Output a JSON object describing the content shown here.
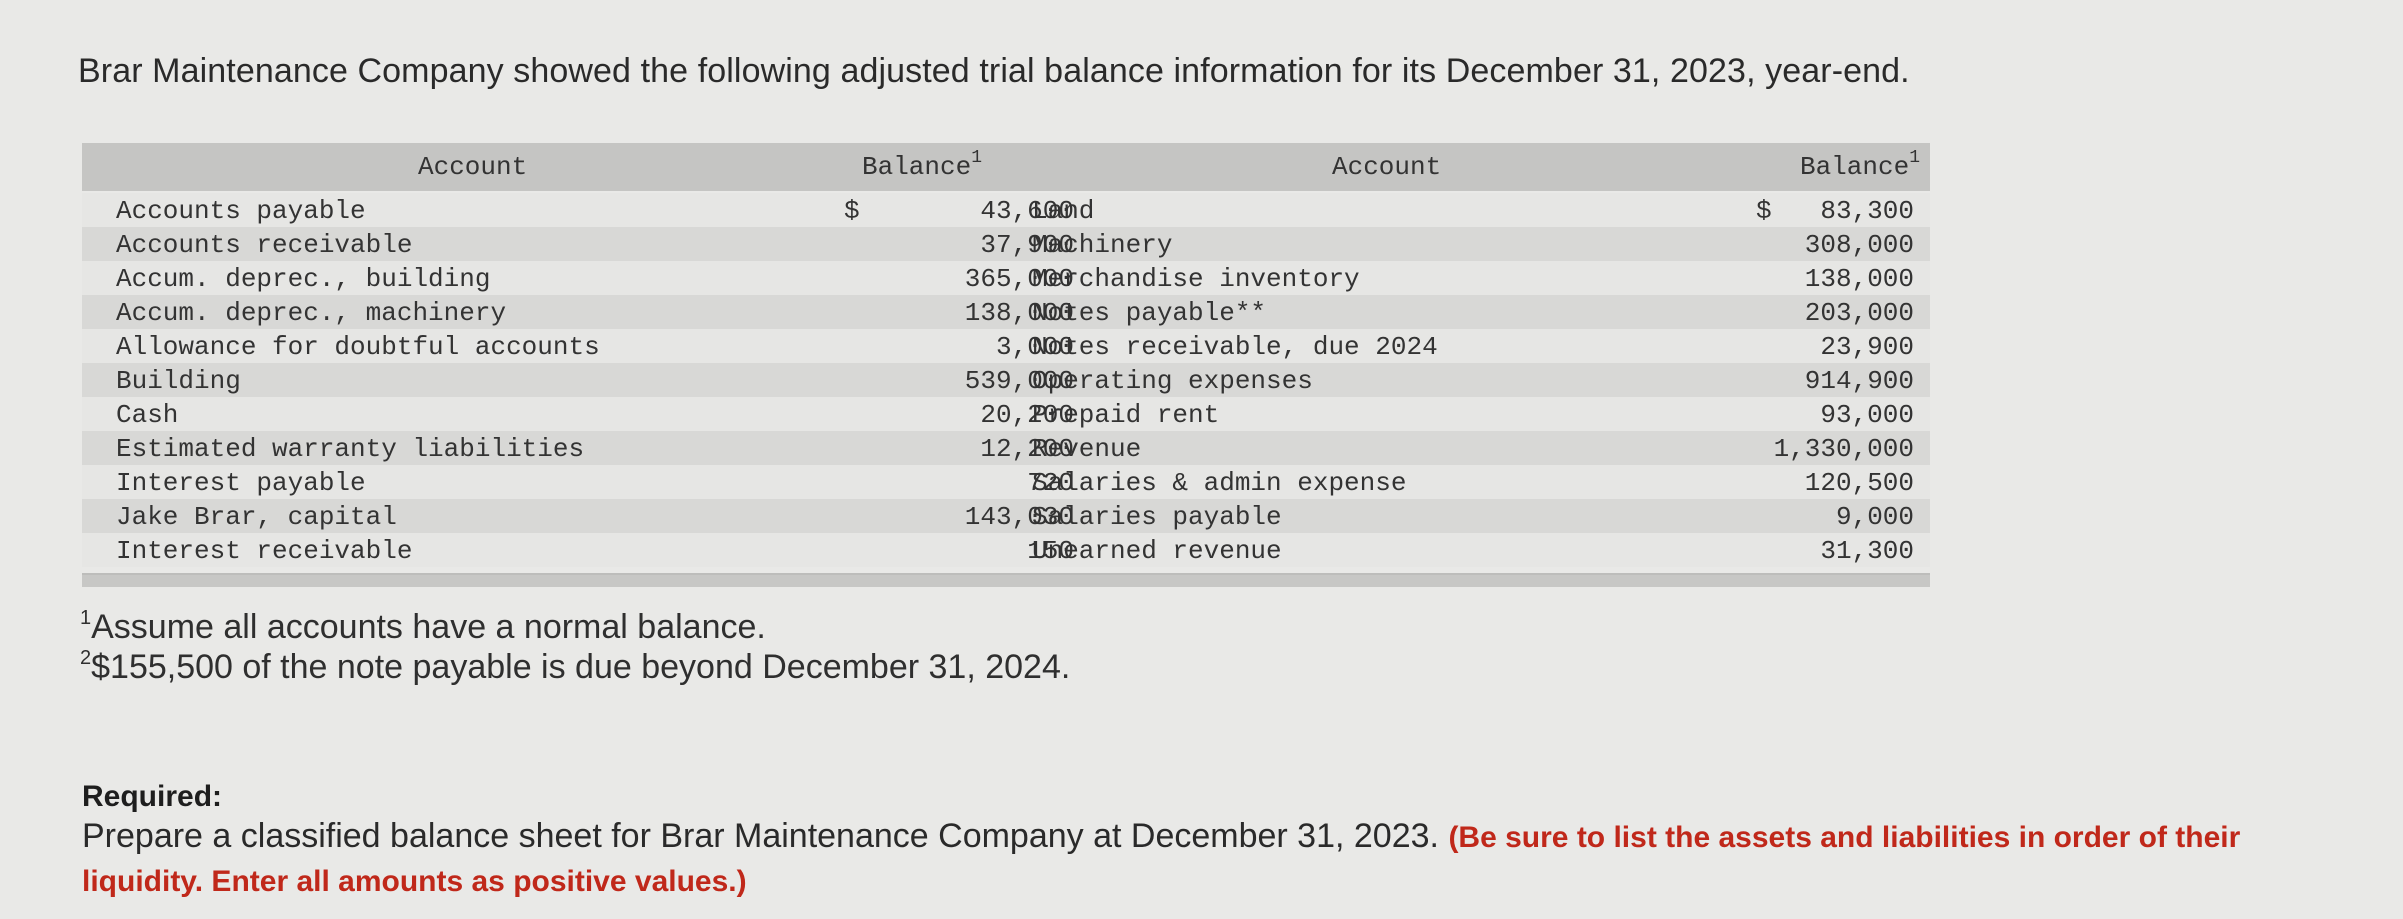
{
  "intro": "Brar Maintenance Company showed the following adjusted trial balance information for its December 31, 2023, year-end.",
  "table": {
    "header_account": "Account",
    "header_balance": "Balance",
    "header_sup": "1",
    "currency": "$",
    "left": [
      {
        "account": "Accounts payable",
        "balance": "43,600"
      },
      {
        "account": "Accounts receivable",
        "balance": "37,900"
      },
      {
        "account": "Accum. deprec., building",
        "balance": "365,000"
      },
      {
        "account": "Accum. deprec., machinery",
        "balance": "138,000"
      },
      {
        "account": "Allowance for doubtful accounts",
        "balance": "3,000"
      },
      {
        "account": "Building",
        "balance": "539,000"
      },
      {
        "account": "Cash",
        "balance": "20,200"
      },
      {
        "account": "Estimated warranty liabilities",
        "balance": "12,200"
      },
      {
        "account": "Interest payable",
        "balance": "720"
      },
      {
        "account": "Jake Brar, capital",
        "balance": "143,030"
      },
      {
        "account": "Interest receivable",
        "balance": "150"
      }
    ],
    "right": [
      {
        "account": "Land",
        "balance": "83,300"
      },
      {
        "account": "Machinery",
        "balance": "308,000"
      },
      {
        "account": "Merchandise inventory",
        "balance": "138,000"
      },
      {
        "account": "Notes payable**",
        "balance": "203,000"
      },
      {
        "account": "Notes receivable, due 2024",
        "balance": "23,900"
      },
      {
        "account": "Operating expenses",
        "balance": "914,900"
      },
      {
        "account": "Prepaid rent",
        "balance": "93,000"
      },
      {
        "account": "Revenue",
        "balance": "1,330,000"
      },
      {
        "account": "Salaries & admin expense",
        "balance": "120,500"
      },
      {
        "account": "Salaries payable",
        "balance": "9,000"
      },
      {
        "account": "Unearned revenue",
        "balance": "31,300"
      }
    ]
  },
  "footnotes": [
    {
      "mark": "1",
      "text": "Assume all accounts have a normal balance."
    },
    {
      "mark": "2",
      "text": "$155,500 of the note payable is due beyond December 31, 2024."
    }
  ],
  "required": {
    "title": "Required:",
    "text": "Prepare a classified balance sheet for Brar Maintenance Company at December 31, 2023.",
    "emphasis": "(Be sure to list the assets and liabilities in order of their liquidity. Enter all amounts as positive values.)"
  }
}
